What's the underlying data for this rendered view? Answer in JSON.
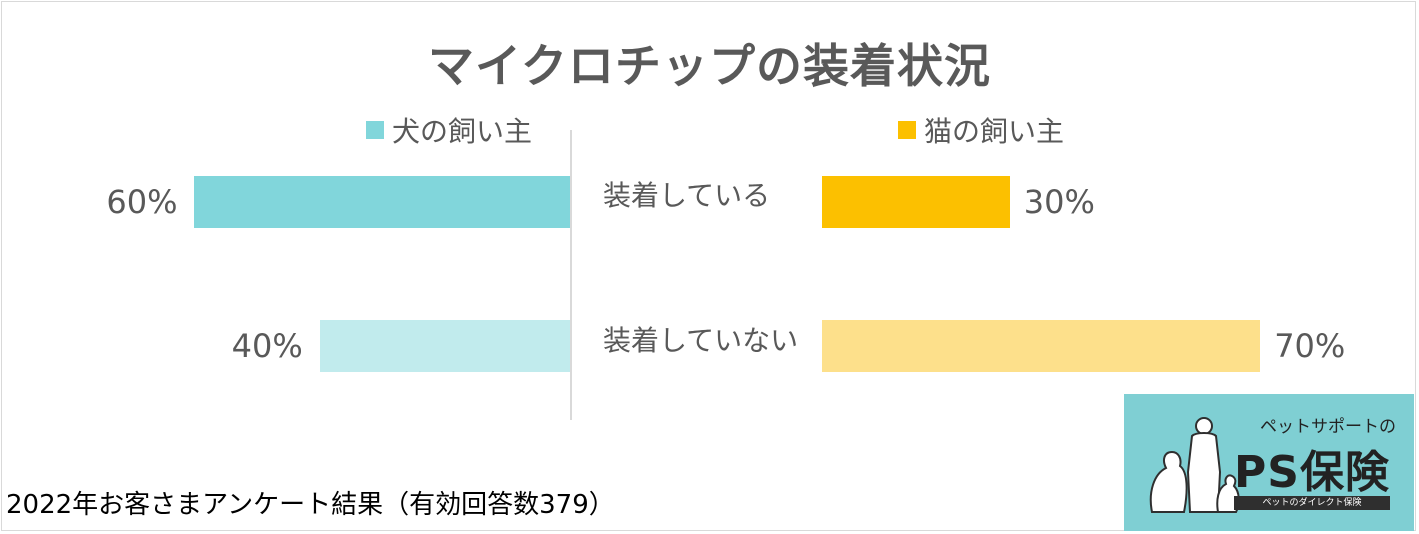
{
  "chart_data": {
    "type": "bar",
    "title": "マイクロチップの装着状況",
    "categories": [
      "装着している",
      "装着していない"
    ],
    "series": [
      {
        "name": "犬の飼い主",
        "values": [
          60,
          40
        ],
        "labels": [
          "60%",
          "40%"
        ],
        "colors": [
          "#81d6db",
          "#c1ebed"
        ],
        "side": "left"
      },
      {
        "name": "猫の飼い主",
        "values": [
          30,
          70
        ],
        "labels": [
          "30%",
          "70%"
        ],
        "colors": [
          "#fcc000",
          "#fde08b"
        ],
        "side": "right"
      }
    ],
    "xlim": [
      0,
      100
    ],
    "legend_colors": [
      "#81d6db",
      "#fcc000"
    ]
  },
  "footer": "2022年お客さまアンケート結果（有効回答数379）",
  "logo": {
    "small_text": "ペットサポートの",
    "brand": "PS保険",
    "tagline": "ペットのダイレクト保険"
  }
}
